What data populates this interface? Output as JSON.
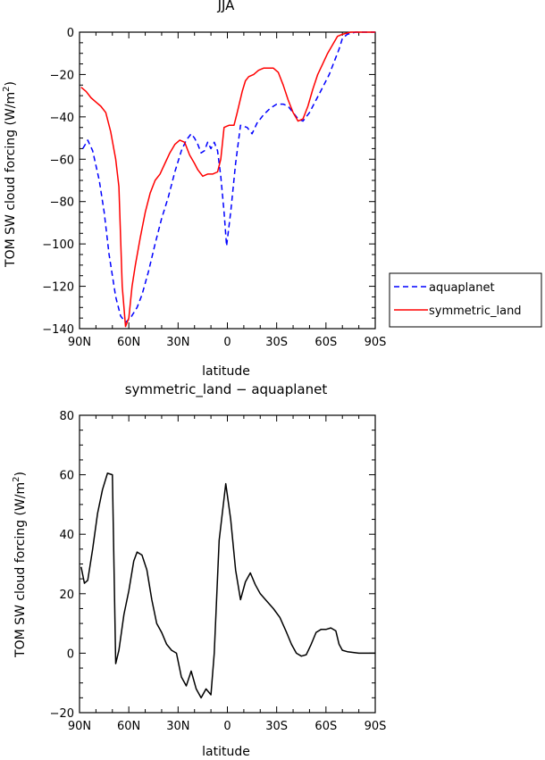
{
  "chart_data": [
    {
      "type": "line",
      "title": "JJA",
      "xlabel": "latitude",
      "ylabel": "TOM SW cloud forcing (W/m",
      "ylabel_sup": "2",
      "ylabel_close": ")",
      "xlim": [
        90,
        -90
      ],
      "ylim": [
        -140,
        0
      ],
      "x_ticks": [
        90,
        60,
        30,
        0,
        -30,
        -60,
        -90
      ],
      "x_tick_labels": [
        "90N",
        "60N",
        "30N",
        "0",
        "30S",
        "60S",
        "90S"
      ],
      "y_ticks": [
        0,
        -20,
        -40,
        -60,
        -80,
        -100,
        -120,
        -140
      ],
      "y_tick_labels": [
        "0",
        "−20",
        "−40",
        "−60",
        "−80",
        "−100",
        "−120",
        "−140"
      ],
      "legend_position": "outside-right",
      "series": [
        {
          "name": "aquaplanet",
          "color": "#0000ff",
          "dash": "dashed",
          "points": [
            [
              88,
              -55
            ],
            [
              85,
              -51
            ],
            [
              82,
              -56
            ],
            [
              78,
              -70
            ],
            [
              75,
              -85
            ],
            [
              72,
              -105
            ],
            [
              68,
              -125
            ],
            [
              65,
              -134
            ],
            [
              62,
              -137
            ],
            [
              59,
              -135
            ],
            [
              55,
              -130
            ],
            [
              52,
              -124
            ],
            [
              48,
              -113
            ],
            [
              44,
              -100
            ],
            [
              40,
              -88
            ],
            [
              36,
              -78
            ],
            [
              32,
              -66
            ],
            [
              28,
              -56
            ],
            [
              25,
              -51
            ],
            [
              22,
              -48
            ],
            [
              20,
              -50
            ],
            [
              18,
              -53
            ],
            [
              16,
              -57
            ],
            [
              14,
              -56
            ],
            [
              12,
              -52
            ],
            [
              10,
              -55
            ],
            [
              8,
              -52
            ],
            [
              6,
              -56
            ],
            [
              4,
              -68
            ],
            [
              2,
              -85
            ],
            [
              0.5,
              -101
            ],
            [
              -2,
              -85
            ],
            [
              -5,
              -62
            ],
            [
              -8,
              -44
            ],
            [
              -12,
              -45
            ],
            [
              -15,
              -48
            ],
            [
              -18,
              -43
            ],
            [
              -22,
              -39
            ],
            [
              -26,
              -36
            ],
            [
              -30,
              -34
            ],
            [
              -34,
              -34
            ],
            [
              -37,
              -35
            ],
            [
              -40,
              -38
            ],
            [
              -43,
              -41
            ],
            [
              -46,
              -42
            ],
            [
              -50,
              -38
            ],
            [
              -54,
              -32
            ],
            [
              -58,
              -26
            ],
            [
              -62,
              -20
            ],
            [
              -65,
              -14
            ],
            [
              -68,
              -8
            ],
            [
              -70,
              -3
            ],
            [
              -73,
              -1
            ],
            [
              -78,
              0
            ],
            [
              -85,
              0
            ],
            [
              -90,
              0
            ]
          ]
        },
        {
          "name": "symmetric_land",
          "color": "#ff0000",
          "dash": "solid",
          "points": [
            [
              89,
              -26
            ],
            [
              86,
              -28
            ],
            [
              83,
              -31
            ],
            [
              80,
              -33
            ],
            [
              77,
              -35
            ],
            [
              74,
              -38
            ],
            [
              71,
              -47
            ],
            [
              68,
              -60
            ],
            [
              66,
              -73
            ],
            [
              64,
              -120
            ],
            [
              62,
              -139
            ],
            [
              60,
              -135
            ],
            [
              58,
              -120
            ],
            [
              56,
              -110
            ],
            [
              53,
              -97
            ],
            [
              50,
              -85
            ],
            [
              47,
              -76
            ],
            [
              44,
              -70
            ],
            [
              41,
              -67
            ],
            [
              38,
              -62
            ],
            [
              35,
              -57
            ],
            [
              32,
              -53
            ],
            [
              29,
              -51
            ],
            [
              26,
              -52
            ],
            [
              23,
              -58
            ],
            [
              20,
              -62
            ],
            [
              18,
              -65
            ],
            [
              15,
              -68
            ],
            [
              12,
              -67
            ],
            [
              9,
              -67
            ],
            [
              6,
              -66
            ],
            [
              4,
              -60
            ],
            [
              2,
              -45
            ],
            [
              -1,
              -44
            ],
            [
              -4,
              -44
            ],
            [
              -6,
              -38
            ],
            [
              -9,
              -28
            ],
            [
              -11,
              -23
            ],
            [
              -13,
              -21
            ],
            [
              -16,
              -20
            ],
            [
              -19,
              -18
            ],
            [
              -22,
              -17
            ],
            [
              -25,
              -17
            ],
            [
              -28,
              -17
            ],
            [
              -31,
              -19
            ],
            [
              -34,
              -25
            ],
            [
              -37,
              -32
            ],
            [
              -40,
              -38
            ],
            [
              -43,
              -42
            ],
            [
              -46,
              -41
            ],
            [
              -49,
              -35
            ],
            [
              -52,
              -27
            ],
            [
              -55,
              -20
            ],
            [
              -58,
              -15
            ],
            [
              -61,
              -10
            ],
            [
              -64,
              -6
            ],
            [
              -67,
              -2
            ],
            [
              -70,
              -1
            ],
            [
              -75,
              0
            ],
            [
              -80,
              0
            ],
            [
              -90,
              0
            ]
          ]
        }
      ]
    },
    {
      "type": "line",
      "title": "symmetric_land − aquaplanet",
      "xlabel": "latitude",
      "ylabel": "TOM SW cloud forcing (W/m",
      "ylabel_sup": "2",
      "ylabel_close": ")",
      "xlim": [
        90,
        -90
      ],
      "ylim": [
        -20,
        80
      ],
      "x_ticks": [
        90,
        60,
        30,
        0,
        -30,
        -60,
        -90
      ],
      "x_tick_labels": [
        "90N",
        "60N",
        "30N",
        "0",
        "30S",
        "60S",
        "90S"
      ],
      "y_ticks": [
        80,
        60,
        40,
        20,
        0,
        -20
      ],
      "y_tick_labels": [
        "80",
        "60",
        "40",
        "20",
        "0",
        "−20"
      ],
      "series": [
        {
          "color": "#000000",
          "dash": "solid",
          "points": [
            [
              89,
              29
            ],
            [
              87,
              23.5
            ],
            [
              85,
              24.5
            ],
            [
              82,
              35
            ],
            [
              79,
              47
            ],
            [
              76,
              55
            ],
            [
              73,
              60.5
            ],
            [
              70,
              60
            ],
            [
              68,
              -3.5
            ],
            [
              66,
              1
            ],
            [
              63,
              13
            ],
            [
              60,
              21
            ],
            [
              57,
              31
            ],
            [
              55,
              34
            ],
            [
              52,
              33
            ],
            [
              49,
              28
            ],
            [
              46,
              18
            ],
            [
              43,
              10
            ],
            [
              40,
              7
            ],
            [
              37,
              3
            ],
            [
              34,
              1
            ],
            [
              31,
              0
            ],
            [
              28,
              -8
            ],
            [
              25,
              -11
            ],
            [
              22,
              -6
            ],
            [
              19,
              -12
            ],
            [
              16,
              -15
            ],
            [
              13,
              -12
            ],
            [
              10,
              -14
            ],
            [
              8,
              0
            ],
            [
              5,
              38
            ],
            [
              1,
              57
            ],
            [
              -2,
              45
            ],
            [
              -5,
              28
            ],
            [
              -8,
              18
            ],
            [
              -11,
              24
            ],
            [
              -14,
              27
            ],
            [
              -17,
              23
            ],
            [
              -20,
              20
            ],
            [
              -24,
              17.5
            ],
            [
              -28,
              15
            ],
            [
              -32,
              12
            ],
            [
              -36,
              7
            ],
            [
              -39,
              3
            ],
            [
              -42,
              0
            ],
            [
              -45,
              -1
            ],
            [
              -48,
              -0.5
            ],
            [
              -51,
              3
            ],
            [
              -54,
              7
            ],
            [
              -57,
              8
            ],
            [
              -60,
              8
            ],
            [
              -63,
              8.5
            ],
            [
              -66,
              7.5
            ],
            [
              -68,
              3
            ],
            [
              -70,
              1
            ],
            [
              -73,
              0.5
            ],
            [
              -80,
              0
            ],
            [
              -90,
              0
            ]
          ]
        }
      ]
    }
  ]
}
